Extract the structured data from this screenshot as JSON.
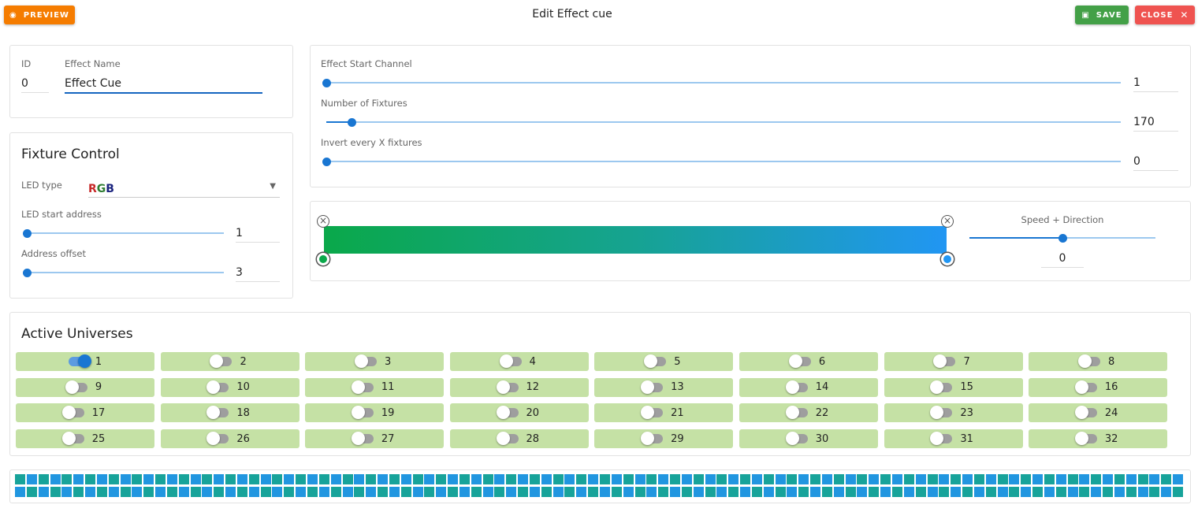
{
  "toolbar": {
    "preview": "PREVIEW",
    "title": "Edit Effect cue",
    "save": "SAVE",
    "close": "CLOSE"
  },
  "cue": {
    "id_label": "ID",
    "id": "0",
    "name_label": "Effect Name",
    "name": "Effect Cue"
  },
  "fixture_control": {
    "title": "Fixture Control",
    "led_type_label": "LED type",
    "led_type": "RGB",
    "start_address_label": "LED start address",
    "start_address": "1",
    "offset_label": "Address offset",
    "offset": "3"
  },
  "effect": {
    "start_channel_label": "Effect Start Channel",
    "start_channel": "1",
    "fixtures_label": "Number of Fixtures",
    "fixtures": "170",
    "invert_label": "Invert every X fixtures",
    "invert": "0"
  },
  "gradient": {
    "speed_label": "Speed + Direction",
    "speed": "0"
  },
  "universes": {
    "title": "Active Universes",
    "items": [
      {
        "label": "1",
        "on": true
      },
      {
        "label": "2",
        "on": false
      },
      {
        "label": "3",
        "on": false
      },
      {
        "label": "4",
        "on": false
      },
      {
        "label": "5",
        "on": false
      },
      {
        "label": "6",
        "on": false
      },
      {
        "label": "7",
        "on": false
      },
      {
        "label": "8",
        "on": false
      },
      {
        "label": "9",
        "on": false
      },
      {
        "label": "10",
        "on": false
      },
      {
        "label": "11",
        "on": false
      },
      {
        "label": "12",
        "on": false
      },
      {
        "label": "13",
        "on": false
      },
      {
        "label": "14",
        "on": false
      },
      {
        "label": "15",
        "on": false
      },
      {
        "label": "16",
        "on": false
      },
      {
        "label": "17",
        "on": false
      },
      {
        "label": "18",
        "on": false
      },
      {
        "label": "19",
        "on": false
      },
      {
        "label": "20",
        "on": false
      },
      {
        "label": "21",
        "on": false
      },
      {
        "label": "22",
        "on": false
      },
      {
        "label": "23",
        "on": false
      },
      {
        "label": "24",
        "on": false
      },
      {
        "label": "25",
        "on": false
      },
      {
        "label": "26",
        "on": false
      },
      {
        "label": "27",
        "on": false
      },
      {
        "label": "28",
        "on": false
      },
      {
        "label": "29",
        "on": false
      },
      {
        "label": "30",
        "on": false
      },
      {
        "label": "31",
        "on": false
      },
      {
        "label": "32",
        "on": false
      }
    ]
  }
}
